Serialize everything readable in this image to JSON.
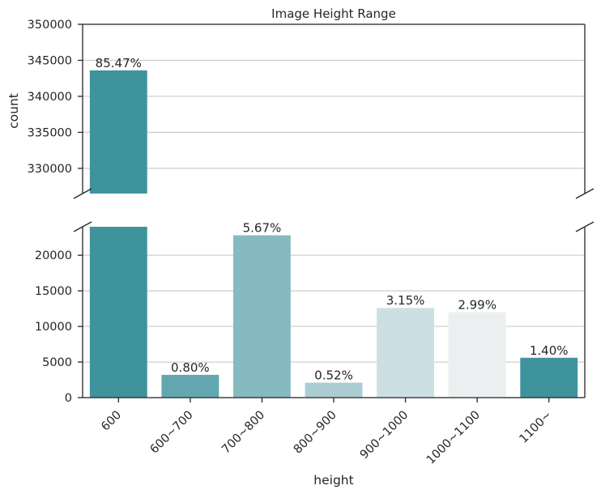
{
  "chart_data": {
    "type": "bar",
    "title": "Image Height Range",
    "xlabel": "height",
    "ylabel": "count",
    "categories": [
      "600",
      "600~700",
      "700~800",
      "800~900",
      "900~1000",
      "1000~1100",
      "1100~"
    ],
    "values": [
      343600,
      3200,
      22800,
      2100,
      12600,
      12000,
      5600
    ],
    "percent_labels": [
      "85.47%",
      "0.80%",
      "5.67%",
      "0.52%",
      "3.15%",
      "2.99%",
      "1.40%"
    ],
    "colors": [
      "#3f939d",
      "#62a6af",
      "#87b9c0",
      "#abcdd2",
      "#cce0e4",
      "#ebeff0",
      "#3f939d"
    ],
    "broken_axis": true,
    "upper_ylim": [
      326500,
      350000
    ],
    "upper_yticks": [
      330000,
      335000,
      340000,
      345000,
      350000
    ],
    "upper_ytick_labels": [
      "330000",
      "335000",
      "340000",
      "345000",
      "350000"
    ],
    "lower_ylim": [
      0,
      24000
    ],
    "lower_yticks": [
      0,
      5000,
      10000,
      15000,
      20000
    ],
    "lower_ytick_labels": [
      "0",
      "5000",
      "10000",
      "15000",
      "20000"
    ],
    "grid": true
  }
}
